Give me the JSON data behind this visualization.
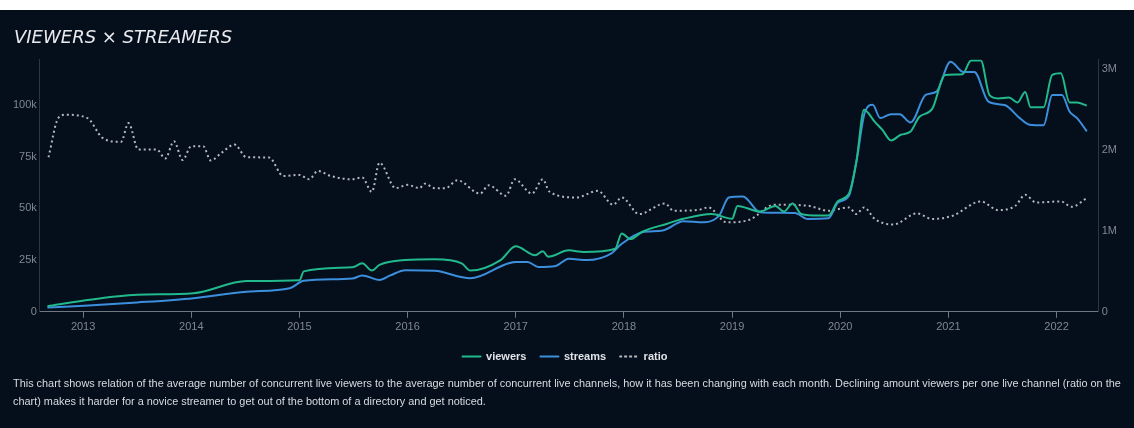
{
  "chart_data": {
    "type": "line",
    "title": "VIEWERS × STREAMERS",
    "legend": "bottom",
    "grid": false,
    "marker": "none",
    "xlim": [
      2012.6,
      2022.39
    ],
    "xticks": [
      2013,
      2014,
      2015,
      2016,
      2017,
      2018,
      2019,
      2020,
      2021,
      2022
    ],
    "ylim": [
      0,
      122000
    ],
    "yticks": [
      0,
      {
        "value": 25000,
        "label": "25k"
      },
      {
        "value": 50000,
        "label": "50k"
      },
      {
        "value": 75000,
        "label": "75k"
      },
      {
        "value": 100000,
        "label": "100k"
      }
    ],
    "y2lim": [
      0,
      3120000
    ],
    "y2ticks": [
      0,
      {
        "value": 1000000,
        "label": "1M"
      },
      {
        "value": 2000000,
        "label": "2M"
      },
      {
        "value": 3000000,
        "label": "3M"
      }
    ],
    "series": [
      {
        "name": "viewers",
        "color": "#22b98c",
        "axis": "y2",
        "line_style": "solid",
        "x": [
          2012.67,
          2013.01,
          2013.5,
          2014.02,
          2014.51,
          2015.0,
          2015.04,
          2015.49,
          2015.58,
          2015.67,
          2015.74,
          2015.98,
          2016.25,
          2016.5,
          2016.58,
          2016.86,
          2017.0,
          2017.18,
          2017.25,
          2017.3,
          2017.49,
          2017.63,
          2017.92,
          2017.98,
          2018.06,
          2018.17,
          2018.4,
          2018.55,
          2018.81,
          2019.0,
          2019.05,
          2019.26,
          2019.4,
          2019.48,
          2019.56,
          2019.64,
          2019.8,
          2019.89,
          2019.98,
          2020.08,
          2020.15,
          2020.22,
          2020.32,
          2020.39,
          2020.47,
          2020.56,
          2020.65,
          2020.73,
          2020.85,
          2020.97,
          2021.13,
          2021.21,
          2021.3,
          2021.38,
          2021.46,
          2021.56,
          2021.64,
          2021.71,
          2021.76,
          2021.88,
          2021.96,
          2022.04,
          2022.12,
          2022.19,
          2022.28
        ],
        "values": [
          70000,
          140000,
          210000,
          230000,
          380000,
          390000,
          500000,
          550000,
          600000,
          510000,
          580000,
          640000,
          650000,
          600000,
          510000,
          640000,
          810000,
          700000,
          750000,
          680000,
          760000,
          740000,
          780000,
          970000,
          900000,
          990000,
          1090000,
          1150000,
          1210000,
          1150000,
          1310000,
          1240000,
          1310000,
          1240000,
          1340000,
          1210000,
          1190000,
          1190000,
          1370000,
          1460000,
          1860000,
          2500000,
          2350000,
          2250000,
          2120000,
          2190000,
          2230000,
          2410000,
          2510000,
          2930000,
          2940000,
          3110000,
          3110000,
          2680000,
          2640000,
          2650000,
          2590000,
          2720000,
          2530000,
          2530000,
          2930000,
          2950000,
          2590000,
          2590000,
          2550000
        ]
      },
      {
        "name": "streams",
        "color": "#3b8fdc",
        "axis": "y",
        "line_style": "solid",
        "x": [
          2012.67,
          2013.01,
          2013.5,
          2014.02,
          2014.51,
          2014.91,
          2015.04,
          2015.49,
          2015.58,
          2015.74,
          2015.84,
          2015.98,
          2016.25,
          2016.58,
          2017.0,
          2017.11,
          2017.21,
          2017.37,
          2017.49,
          2017.66,
          2017.88,
          2017.98,
          2018.17,
          2018.36,
          2018.55,
          2018.74,
          2018.88,
          2018.97,
          2019.1,
          2019.26,
          2019.58,
          2019.7,
          2019.89,
          2019.98,
          2020.08,
          2020.15,
          2020.23,
          2020.3,
          2020.37,
          2020.47,
          2020.55,
          2020.65,
          2020.79,
          2020.89,
          2021.02,
          2021.14,
          2021.24,
          2021.37,
          2021.52,
          2021.66,
          2021.75,
          2021.88,
          2021.96,
          2022.05,
          2022.12,
          2022.19,
          2022.28
        ],
        "values": [
          2100,
          2900,
          4500,
          6600,
          9700,
          11400,
          15000,
          16100,
          17600,
          15400,
          17600,
          20100,
          19800,
          16200,
          24100,
          24100,
          21700,
          22200,
          25700,
          25000,
          28100,
          32900,
          38500,
          39300,
          43800,
          43300,
          46500,
          55300,
          55800,
          48100,
          47800,
          44900,
          45200,
          52900,
          56100,
          72900,
          96900,
          100100,
          93700,
          95600,
          95600,
          91600,
          104900,
          106500,
          121000,
          116000,
          116000,
          101700,
          100000,
          93700,
          90500,
          90200,
          104900,
          104900,
          96900,
          93700,
          87300
        ]
      },
      {
        "name": "ratio",
        "color": "#b4b8be",
        "axis": "y",
        "line_style": "dotted",
        "x": [
          2012.68,
          2012.77,
          2012.84,
          2013.04,
          2013.18,
          2013.35,
          2013.42,
          2013.51,
          2013.68,
          2013.76,
          2013.84,
          2013.92,
          2014.0,
          2014.11,
          2014.18,
          2014.28,
          2014.4,
          2014.51,
          2014.72,
          2014.85,
          2015.0,
          2015.09,
          2015.17,
          2015.29,
          2015.48,
          2015.58,
          2015.67,
          2015.74,
          2015.89,
          2016.0,
          2016.11,
          2016.16,
          2016.25,
          2016.35,
          2016.46,
          2016.67,
          2016.75,
          2016.91,
          2016.99,
          2017.15,
          2017.25,
          2017.31,
          2017.56,
          2017.76,
          2017.9,
          2017.98,
          2018.14,
          2018.38,
          2018.46,
          2018.69,
          2018.78,
          2018.95,
          2019.16,
          2019.39,
          2019.7,
          2019.89,
          2020.08,
          2020.15,
          2020.22,
          2020.32,
          2020.49,
          2020.71,
          2020.85,
          2021.04,
          2021.3,
          2021.46,
          2021.62,
          2021.71,
          2021.81,
          2022.04,
          2022.14,
          2022.28
        ],
        "values": [
          74800,
          93700,
          95300,
          93700,
          84100,
          82200,
          91300,
          78500,
          78500,
          74200,
          82500,
          73400,
          80100,
          80100,
          73200,
          76900,
          80900,
          74800,
          74600,
          65700,
          66200,
          64100,
          68100,
          65700,
          64100,
          65000,
          58000,
          72100,
          59800,
          61400,
          59800,
          62000,
          59800,
          59800,
          63600,
          57200,
          61200,
          56100,
          64100,
          57200,
          64100,
          58200,
          55300,
          58500,
          51800,
          55300,
          47300,
          52400,
          48900,
          49300,
          50500,
          43300,
          44500,
          51800,
          51300,
          48900,
          50500,
          47300,
          50500,
          44900,
          42200,
          47600,
          44900,
          46500,
          53400,
          49200,
          51300,
          56600,
          52900,
          53400,
          50800,
          55000
        ]
      }
    ],
    "annotations": [
      "This chart shows relation of the average number of concurrent live viewers to the average number of concurrent live channels, how it has been changing with each month. Declining amount viewers per one live channel (ratio on the chart) makes it harder for a novice streamer to get out of the bottom of a directory and get noticed."
    ]
  }
}
